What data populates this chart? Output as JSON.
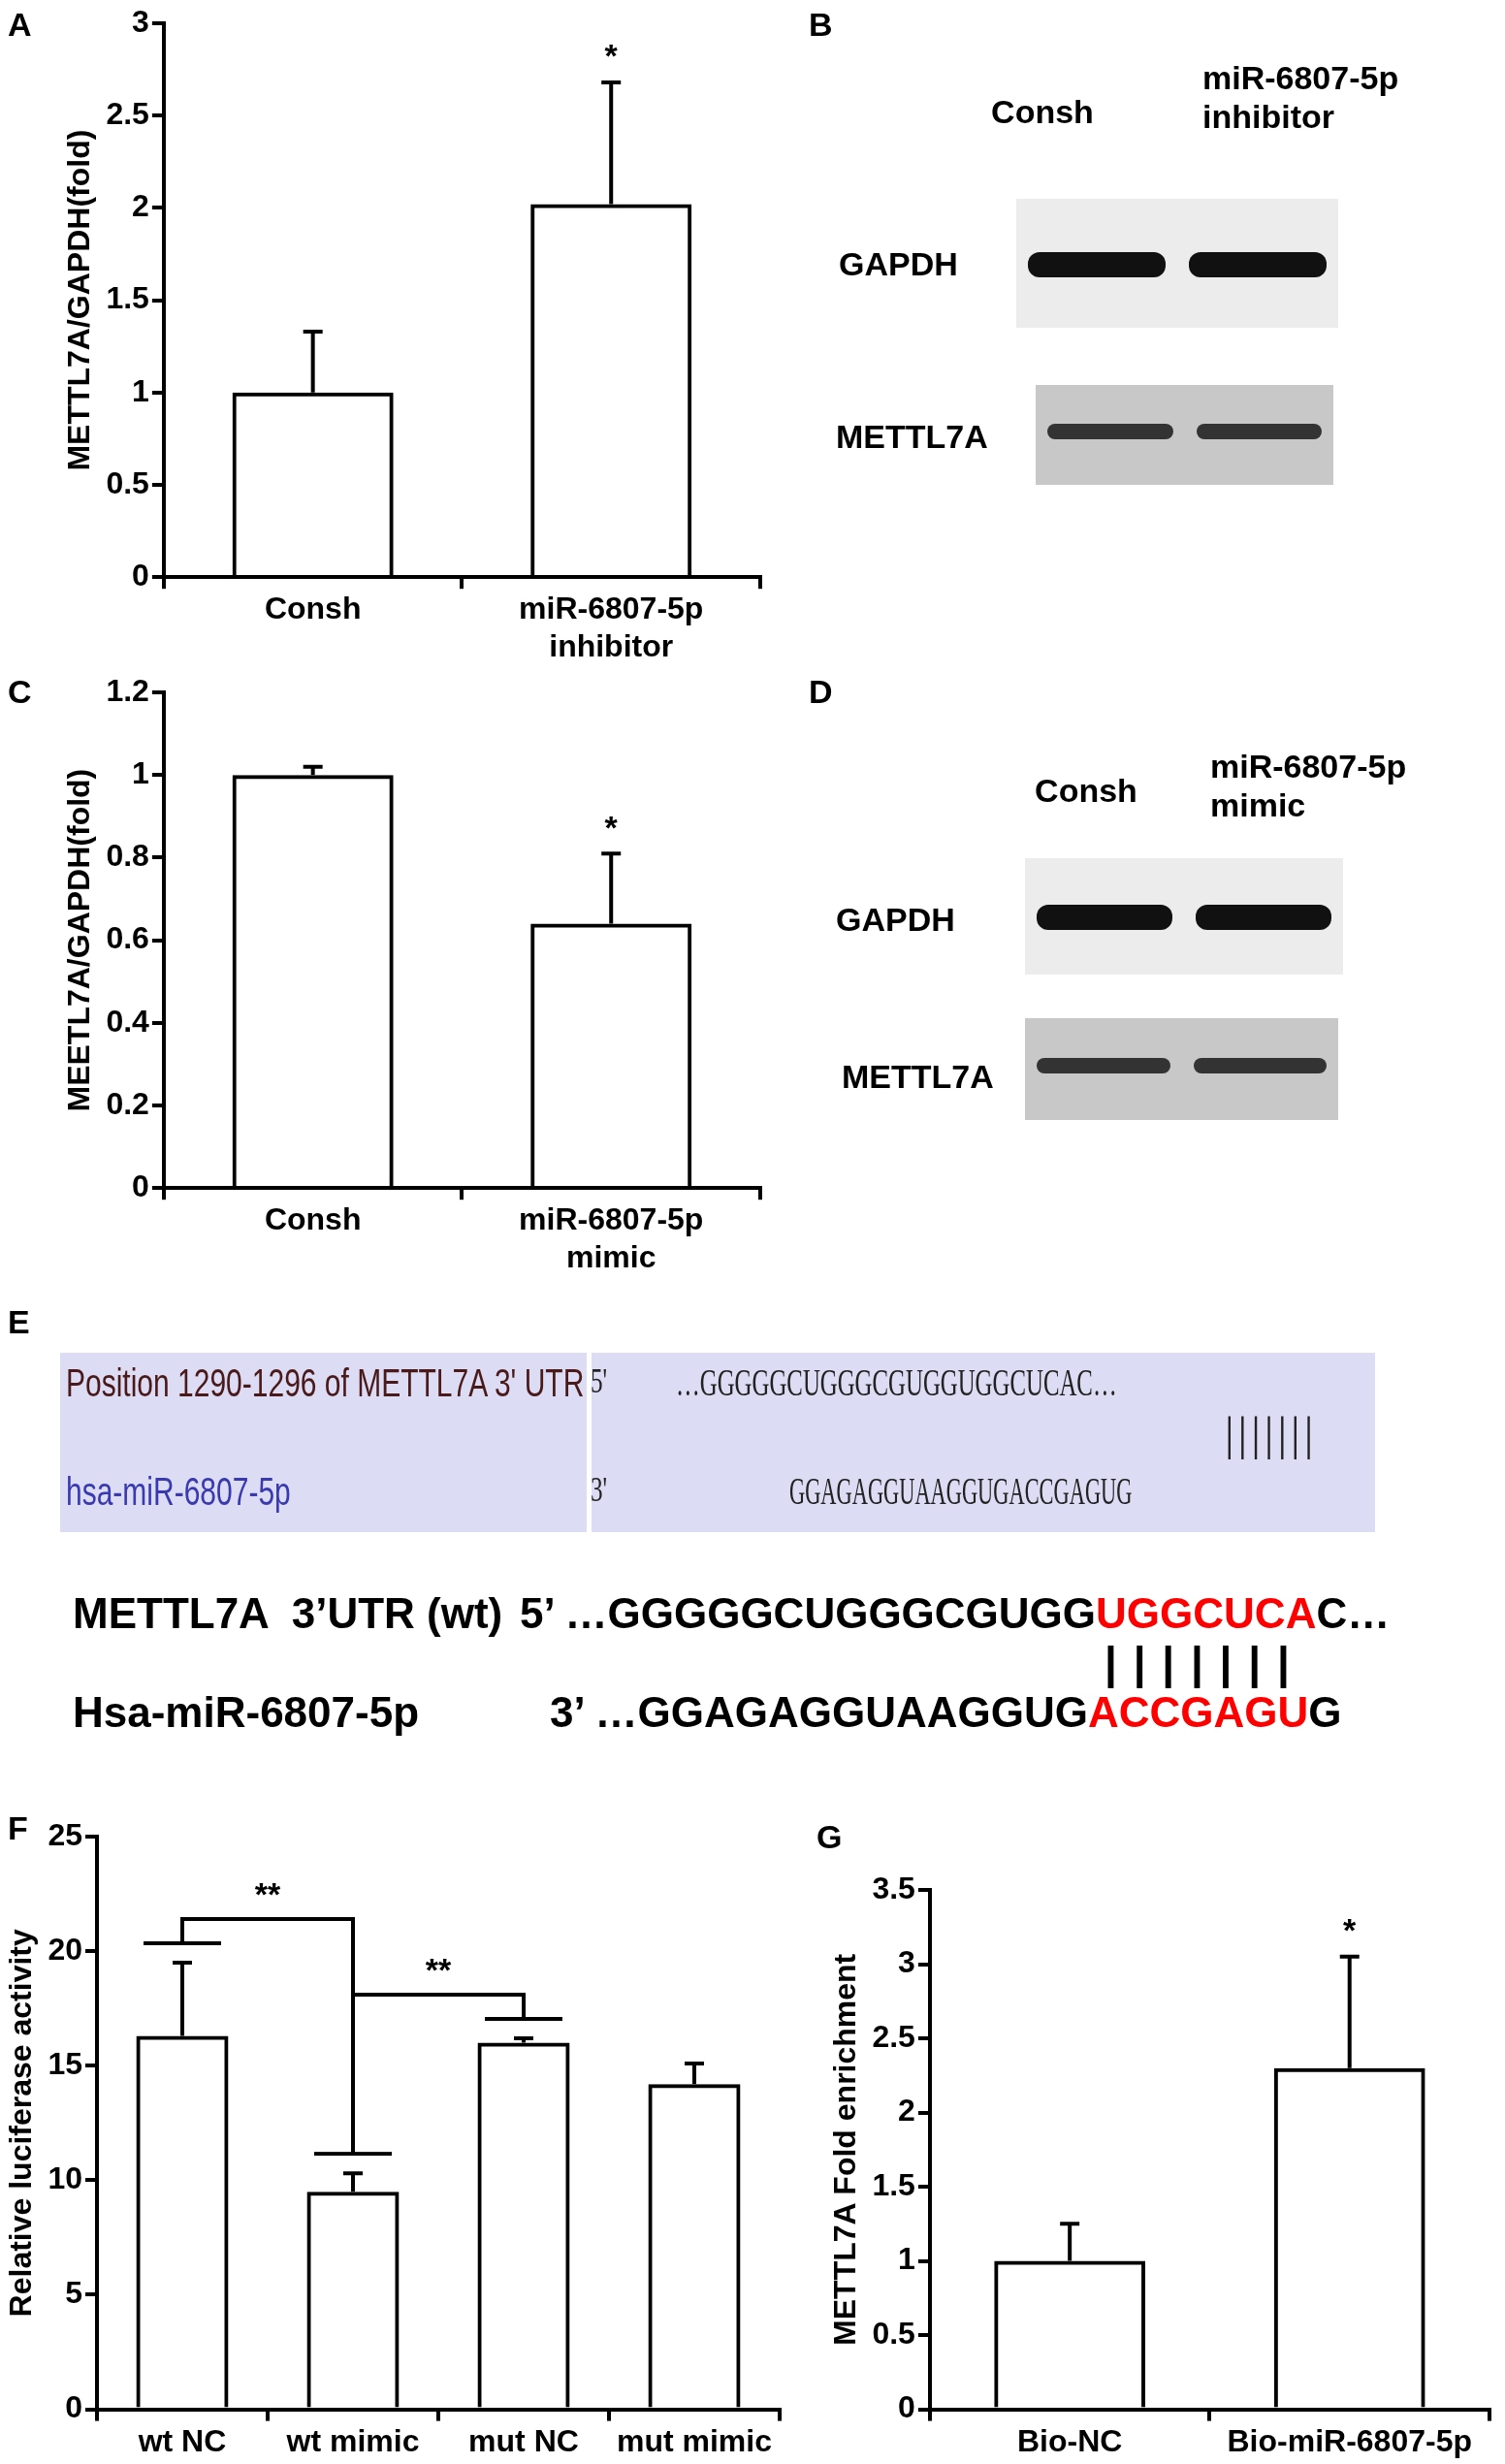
{
  "chart_data": [
    {
      "type": "bar",
      "title": "A",
      "ylabel": "METTL7A/GAPDH(fold)",
      "categories": [
        "Consh",
        "miR-6807-5p\ninhibitor"
      ],
      "values": [
        1.0,
        2.02
      ],
      "errors": [
        0.33,
        0.66
      ],
      "color": "#000000",
      "ylim": [
        0,
        3
      ],
      "yticks": [
        0,
        0.5,
        1,
        1.5,
        2,
        2.5,
        3
      ],
      "annotations": [
        "*"
      ]
    },
    {
      "type": "other",
      "title": "B",
      "categories": [
        "Consh",
        "miR-6807-5p\ninhibitor"
      ],
      "y_categories": [
        "GAPDH",
        "METTL7A"
      ]
    },
    {
      "type": "bar",
      "title": "C",
      "ylabel": "MEETL7A/GAPDH(fold)",
      "categories": [
        "Consh",
        "miR-6807-5p\nmimic"
      ],
      "values": [
        1.0,
        0.64
      ],
      "errors": [
        0.02,
        0.17
      ],
      "color": "#000000",
      "ylim": [
        0,
        1.2
      ],
      "yticks": [
        0,
        0.2,
        0.4,
        0.6,
        0.8,
        1,
        1.2
      ],
      "annotations": [
        "*"
      ]
    },
    {
      "type": "other",
      "title": "D",
      "categories": [
        "Consh",
        "miR-6807-5p\nmimic"
      ],
      "y_categories": [
        "GAPDH",
        "METTL7A"
      ]
    },
    {
      "type": "other",
      "title": "E",
      "annotations": [
        "Position 1290-1296 of METTL7A 3' UTR",
        "5'",
        "…GGGGGCUGGGCGUGGUGGCUCAC…",
        "|||||||",
        "hsa-miR-6807-5p",
        "3'",
        "GGAGAGGUAAGGUGACCGAGUG",
        "METTL7A  3’UTR (wt)",
        "5’ …GGGGGCUGGGCGUGG",
        "UGGCUCA",
        "C…",
        "| | | | | | |",
        "Hsa-miR-6807-5p",
        "3’ …GGAGAGGUAAGGUG",
        "ACCGAGU",
        "G"
      ],
      "colors": [
        "#4a1a1a",
        "#222222",
        "#222222",
        "#222222",
        "#3a3ab0",
        "#222222",
        "#222222",
        "#000000",
        "#000000",
        "#ff0000",
        "#000000",
        "#000000",
        "#000000",
        "#000000",
        "#ff0000",
        "#000000"
      ]
    },
    {
      "type": "bar",
      "title": "F",
      "ylabel": "Relative luciferase activity",
      "categories": [
        "wt NC",
        "wt mimic",
        "mut NC",
        "mut mimic"
      ],
      "values": [
        16.3,
        9.5,
        16.0,
        14.2
      ],
      "errors": [
        3.2,
        0.8,
        0.2,
        0.9
      ],
      "color": "#000000",
      "ylim": [
        0,
        25
      ],
      "yticks": [
        0,
        5,
        10,
        15,
        20,
        25
      ],
      "annotations": [
        "**",
        "**"
      ]
    },
    {
      "type": "bar",
      "title": "G",
      "ylabel": "METTL7A Fold enrichment",
      "categories": [
        "Bio-NC",
        "Bio-miR-6807-5p"
      ],
      "values": [
        1.0,
        2.3
      ],
      "errors": [
        0.25,
        0.75
      ],
      "color": "#000000",
      "ylim": [
        0,
        3.5
      ],
      "yticks": [
        0,
        0.5,
        1,
        1.5,
        2,
        2.5,
        3,
        3.5
      ],
      "annotations": [
        "*"
      ]
    }
  ]
}
